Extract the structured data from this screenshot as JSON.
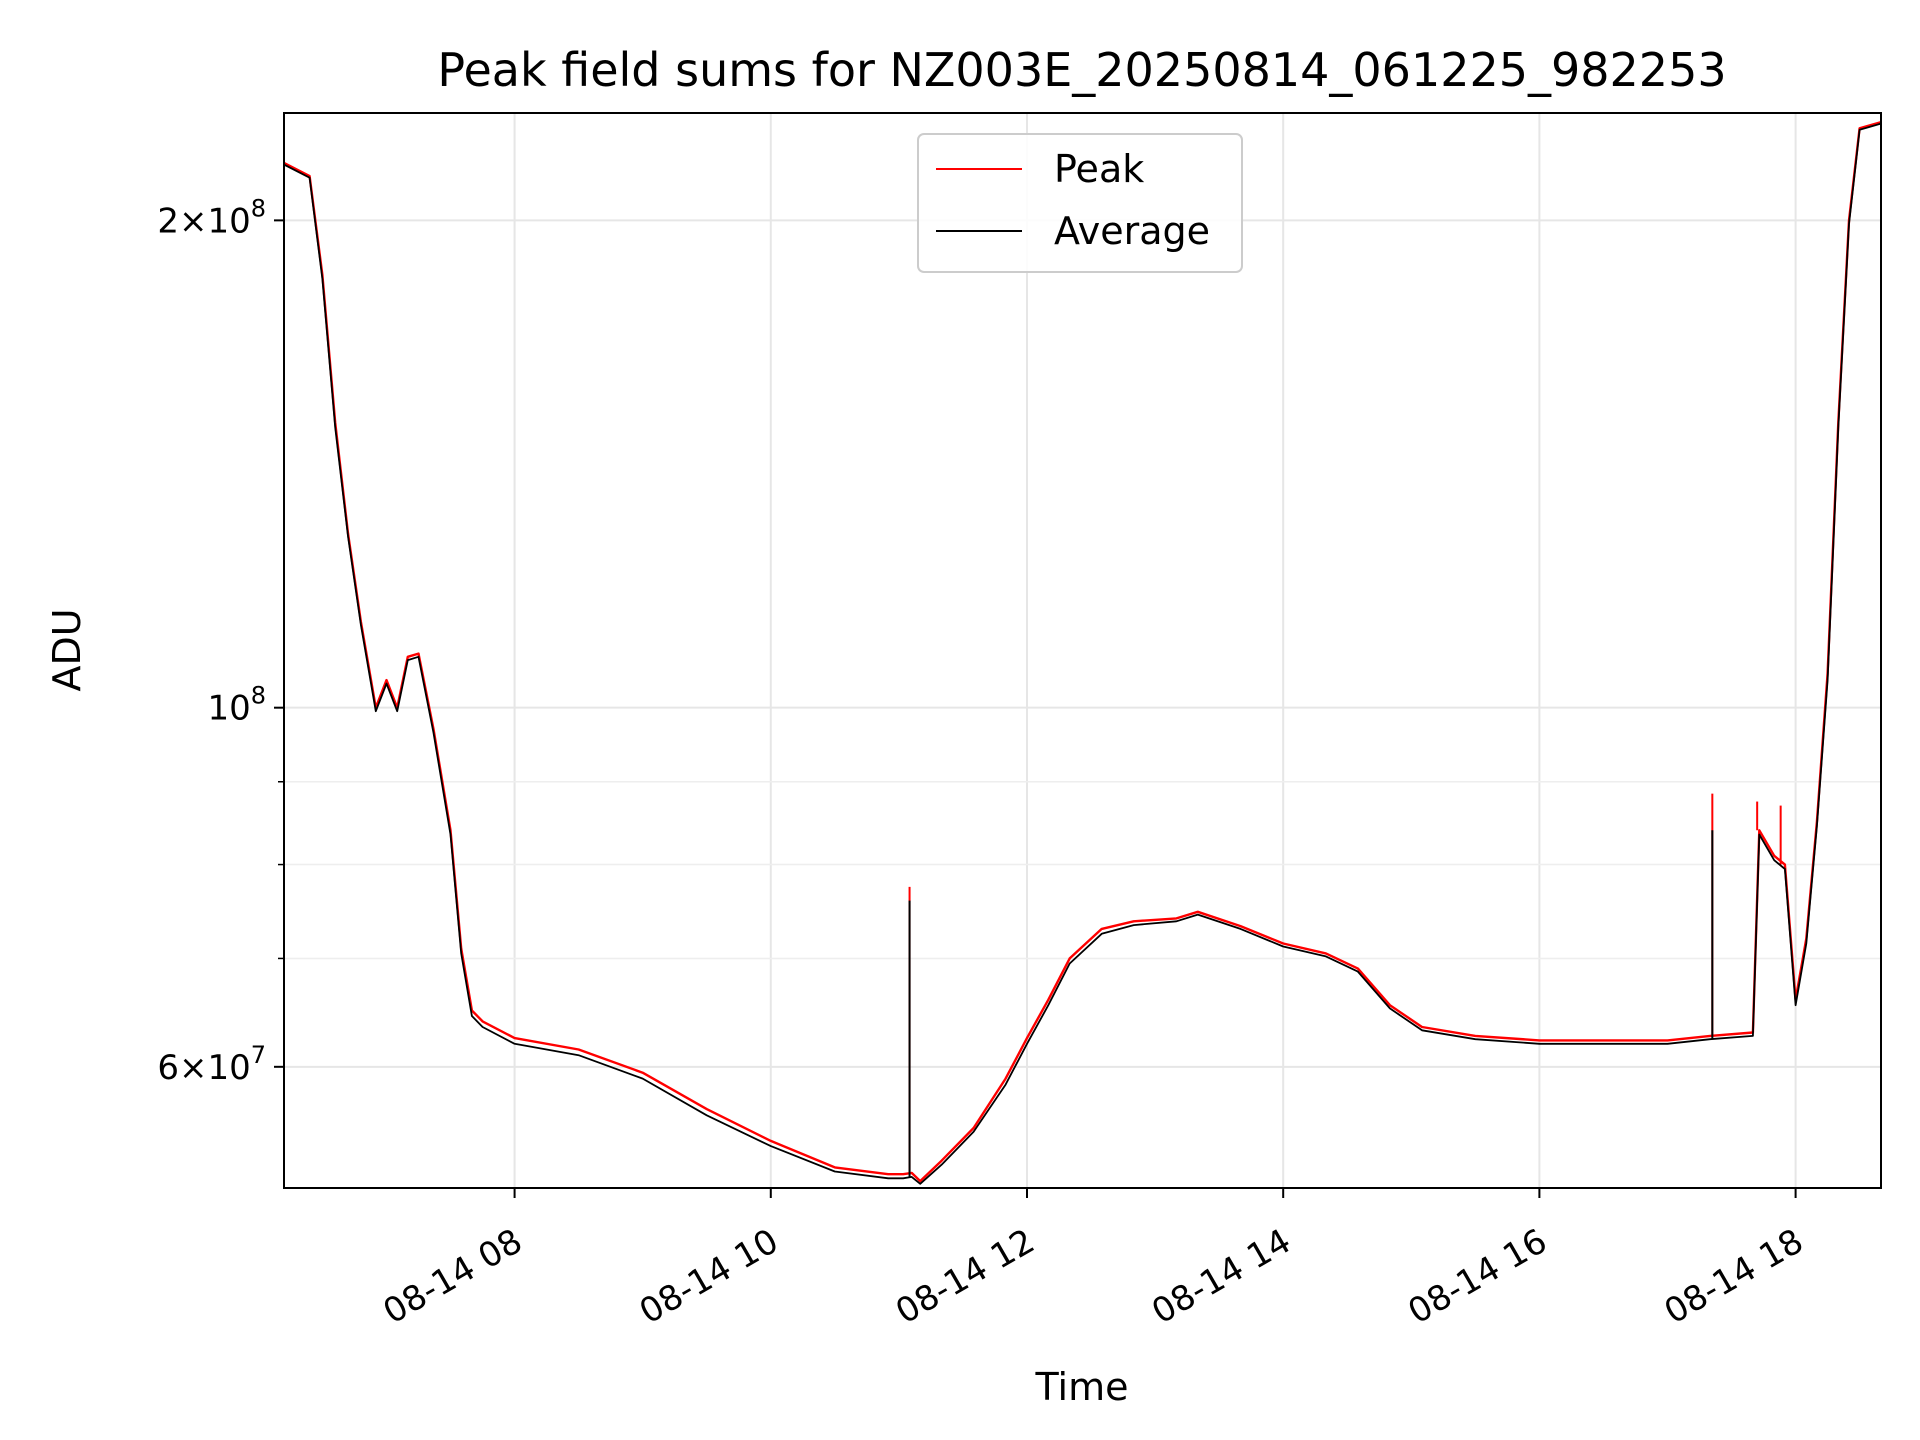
{
  "chart_data": {
    "type": "line",
    "title": "Peak field sums for NZ003E_20250814_061225_982253",
    "xlabel": "Time",
    "ylabel": "ADU",
    "x_axis": "datetime",
    "xlim": [
      "2025-08-14 06:12",
      "2025-08-14 18:40"
    ],
    "xticks": [
      "08-14 08",
      "08-14 10",
      "08-14 12",
      "08-14 14",
      "08-14 16",
      "08-14 18"
    ],
    "y_scale": "log",
    "ylim": [
      50500000,
      233000000
    ],
    "ytick_labels": [
      {
        "value": 200000000,
        "mantissa": "2",
        "exponent": "8"
      },
      {
        "value": 100000000,
        "mantissa": "",
        "exponent": "8"
      },
      {
        "value": 60000000,
        "mantissa": "6",
        "exponent": "7"
      }
    ],
    "y_minor_ticks": [
      70000000,
      80000000,
      90000000
    ],
    "grid": true,
    "legend_position": "top-center",
    "series": [
      {
        "name": "Peak",
        "color": "#ff0000",
        "points": [
          [
            "2025-08-14 06:12",
            217000000
          ],
          [
            "2025-08-14 06:24",
            213000000
          ],
          [
            "2025-08-14 06:30",
            185000000
          ],
          [
            "2025-08-14 06:36",
            150000000
          ],
          [
            "2025-08-14 06:42",
            128000000
          ],
          [
            "2025-08-14 06:48",
            113000000
          ],
          [
            "2025-08-14 06:55",
            100000000
          ],
          [
            "2025-08-14 07:00",
            104000000
          ],
          [
            "2025-08-14 07:05",
            100000000
          ],
          [
            "2025-08-14 07:10",
            107500000
          ],
          [
            "2025-08-14 07:15",
            108000000
          ],
          [
            "2025-08-14 07:22",
            97000000
          ],
          [
            "2025-08-14 07:30",
            84000000
          ],
          [
            "2025-08-14 07:35",
            71000000
          ],
          [
            "2025-08-14 07:40",
            65000000
          ],
          [
            "2025-08-14 07:45",
            64000000
          ],
          [
            "2025-08-14 08:00",
            62500000
          ],
          [
            "2025-08-14 08:30",
            61500000
          ],
          [
            "2025-08-14 09:00",
            59500000
          ],
          [
            "2025-08-14 09:30",
            56500000
          ],
          [
            "2025-08-14 10:00",
            54000000
          ],
          [
            "2025-08-14 10:30",
            52000000
          ],
          [
            "2025-08-14 10:55",
            51500000
          ],
          [
            "2025-08-14 11:02",
            51500000
          ],
          [
            "2025-08-14 11:06",
            51600000
          ],
          [
            "2025-08-14 11:10",
            51000000
          ],
          [
            "2025-08-14 11:20",
            52500000
          ],
          [
            "2025-08-14 11:35",
            55000000
          ],
          [
            "2025-08-14 11:50",
            59000000
          ],
          [
            "2025-08-14 12:00",
            62500000
          ],
          [
            "2025-08-14 12:10",
            66000000
          ],
          [
            "2025-08-14 12:20",
            70000000
          ],
          [
            "2025-08-14 12:35",
            73000000
          ],
          [
            "2025-08-14 12:50",
            73800000
          ],
          [
            "2025-08-14 13:10",
            74100000
          ],
          [
            "2025-08-14 13:20",
            74800000
          ],
          [
            "2025-08-14 13:40",
            73300000
          ],
          [
            "2025-08-14 14:00",
            71500000
          ],
          [
            "2025-08-14 14:20",
            70500000
          ],
          [
            "2025-08-14 14:35",
            69000000
          ],
          [
            "2025-08-14 14:50",
            65500000
          ],
          [
            "2025-08-14 15:05",
            63500000
          ],
          [
            "2025-08-14 15:30",
            62700000
          ],
          [
            "2025-08-14 16:00",
            62300000
          ],
          [
            "2025-08-14 16:30",
            62300000
          ],
          [
            "2025-08-14 17:00",
            62300000
          ],
          [
            "2025-08-14 17:20",
            62700000
          ],
          [
            "2025-08-14 17:40",
            63000000
          ],
          [
            "2025-08-14 17:43",
            84000000
          ],
          [
            "2025-08-14 17:50",
            81000000
          ],
          [
            "2025-08-14 17:55",
            80000000
          ],
          [
            "2025-08-14 18:00",
            66000000
          ],
          [
            "2025-08-14 18:05",
            72000000
          ],
          [
            "2025-08-14 18:10",
            85000000
          ],
          [
            "2025-08-14 18:15",
            105000000
          ],
          [
            "2025-08-14 18:20",
            150000000
          ],
          [
            "2025-08-14 18:25",
            200000000
          ],
          [
            "2025-08-14 18:30",
            228000000
          ],
          [
            "2025-08-14 18:40",
            230000000
          ]
        ],
        "spikes": [
          [
            "2025-08-14 11:05",
            77500000
          ],
          [
            "2025-08-14 17:21",
            88500000
          ],
          [
            "2025-08-14 17:42",
            87500000
          ],
          [
            "2025-08-14 17:53",
            87000000
          ]
        ]
      },
      {
        "name": "Average",
        "color": "#000000",
        "points": [
          [
            "2025-08-14 06:12",
            216500000
          ],
          [
            "2025-08-14 06:24",
            212500000
          ],
          [
            "2025-08-14 06:30",
            184000000
          ],
          [
            "2025-08-14 06:36",
            149000000
          ],
          [
            "2025-08-14 06:42",
            127500000
          ],
          [
            "2025-08-14 06:48",
            112500000
          ],
          [
            "2025-08-14 06:55",
            99500000
          ],
          [
            "2025-08-14 07:00",
            103500000
          ],
          [
            "2025-08-14 07:05",
            99500000
          ],
          [
            "2025-08-14 07:10",
            107000000
          ],
          [
            "2025-08-14 07:15",
            107500000
          ],
          [
            "2025-08-14 07:22",
            96500000
          ],
          [
            "2025-08-14 07:30",
            83500000
          ],
          [
            "2025-08-14 07:35",
            70500000
          ],
          [
            "2025-08-14 07:40",
            64500000
          ],
          [
            "2025-08-14 07:45",
            63500000
          ],
          [
            "2025-08-14 08:00",
            62000000
          ],
          [
            "2025-08-14 08:30",
            61000000
          ],
          [
            "2025-08-14 09:00",
            59000000
          ],
          [
            "2025-08-14 09:30",
            56000000
          ],
          [
            "2025-08-14 10:00",
            53600000
          ],
          [
            "2025-08-14 10:30",
            51700000
          ],
          [
            "2025-08-14 10:55",
            51200000
          ],
          [
            "2025-08-14 11:02",
            51200000
          ],
          [
            "2025-08-14 11:06",
            51300000
          ],
          [
            "2025-08-14 11:10",
            50800000
          ],
          [
            "2025-08-14 11:20",
            52200000
          ],
          [
            "2025-08-14 11:35",
            54700000
          ],
          [
            "2025-08-14 11:50",
            58500000
          ],
          [
            "2025-08-14 12:00",
            62000000
          ],
          [
            "2025-08-14 12:10",
            65500000
          ],
          [
            "2025-08-14 12:20",
            69500000
          ],
          [
            "2025-08-14 12:35",
            72500000
          ],
          [
            "2025-08-14 12:50",
            73400000
          ],
          [
            "2025-08-14 13:10",
            73800000
          ],
          [
            "2025-08-14 13:20",
            74500000
          ],
          [
            "2025-08-14 13:40",
            73000000
          ],
          [
            "2025-08-14 14:00",
            71200000
          ],
          [
            "2025-08-14 14:20",
            70200000
          ],
          [
            "2025-08-14 14:35",
            68700000
          ],
          [
            "2025-08-14 14:50",
            65200000
          ],
          [
            "2025-08-14 15:05",
            63200000
          ],
          [
            "2025-08-14 15:30",
            62400000
          ],
          [
            "2025-08-14 16:00",
            62000000
          ],
          [
            "2025-08-14 16:30",
            62000000
          ],
          [
            "2025-08-14 17:00",
            62000000
          ],
          [
            "2025-08-14 17:20",
            62400000
          ],
          [
            "2025-08-14 17:40",
            62700000
          ],
          [
            "2025-08-14 17:43",
            83500000
          ],
          [
            "2025-08-14 17:50",
            80500000
          ],
          [
            "2025-08-14 17:55",
            79500000
          ],
          [
            "2025-08-14 18:00",
            65500000
          ],
          [
            "2025-08-14 18:05",
            71500000
          ],
          [
            "2025-08-14 18:10",
            84500000
          ],
          [
            "2025-08-14 18:15",
            104000000
          ],
          [
            "2025-08-14 18:20",
            149000000
          ],
          [
            "2025-08-14 18:25",
            199000000
          ],
          [
            "2025-08-14 18:30",
            227500000
          ],
          [
            "2025-08-14 18:40",
            229500000
          ]
        ],
        "spikes": [
          [
            "2025-08-14 11:05",
            76000000
          ],
          [
            "2025-08-14 17:21",
            84000000
          ]
        ]
      }
    ]
  }
}
